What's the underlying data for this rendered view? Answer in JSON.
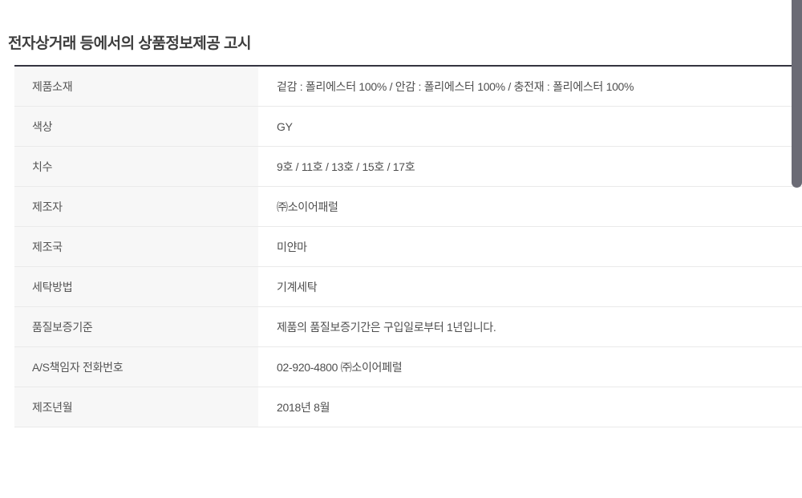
{
  "page": {
    "title": "전자상거래 등에서의 상품정보제공 고시"
  },
  "table": {
    "rows": [
      {
        "label": "제품소재",
        "value": "겉감 : 폴리에스터 100% / 안감 : 폴리에스터 100% / 충전재 : 폴리에스터 100%"
      },
      {
        "label": "색상",
        "value": "GY"
      },
      {
        "label": "치수",
        "value": "9호 / 11호 / 13호 / 15호 / 17호"
      },
      {
        "label": "제조자",
        "value": "㈜소이어패럴"
      },
      {
        "label": "제조국",
        "value": "미얀마"
      },
      {
        "label": "세탁방법",
        "value": "기계세탁"
      },
      {
        "label": "품질보증기준",
        "value": "제품의 품질보증기간은 구입일로부터 1년입니다."
      },
      {
        "label": "A/S책임자 전화번호",
        "value": "02-920-4800 ㈜소이어페럴"
      },
      {
        "label": "제조년월",
        "value": "2018년 8월"
      }
    ]
  },
  "colors": {
    "table_top_border": "#343440",
    "label_column_bg": "#f7f7f7",
    "row_divider": "#eaeaea",
    "scrollbar_thumb": "#6b6b75",
    "title_text": "#3d3d3d",
    "body_text": "#4f4f4f"
  }
}
